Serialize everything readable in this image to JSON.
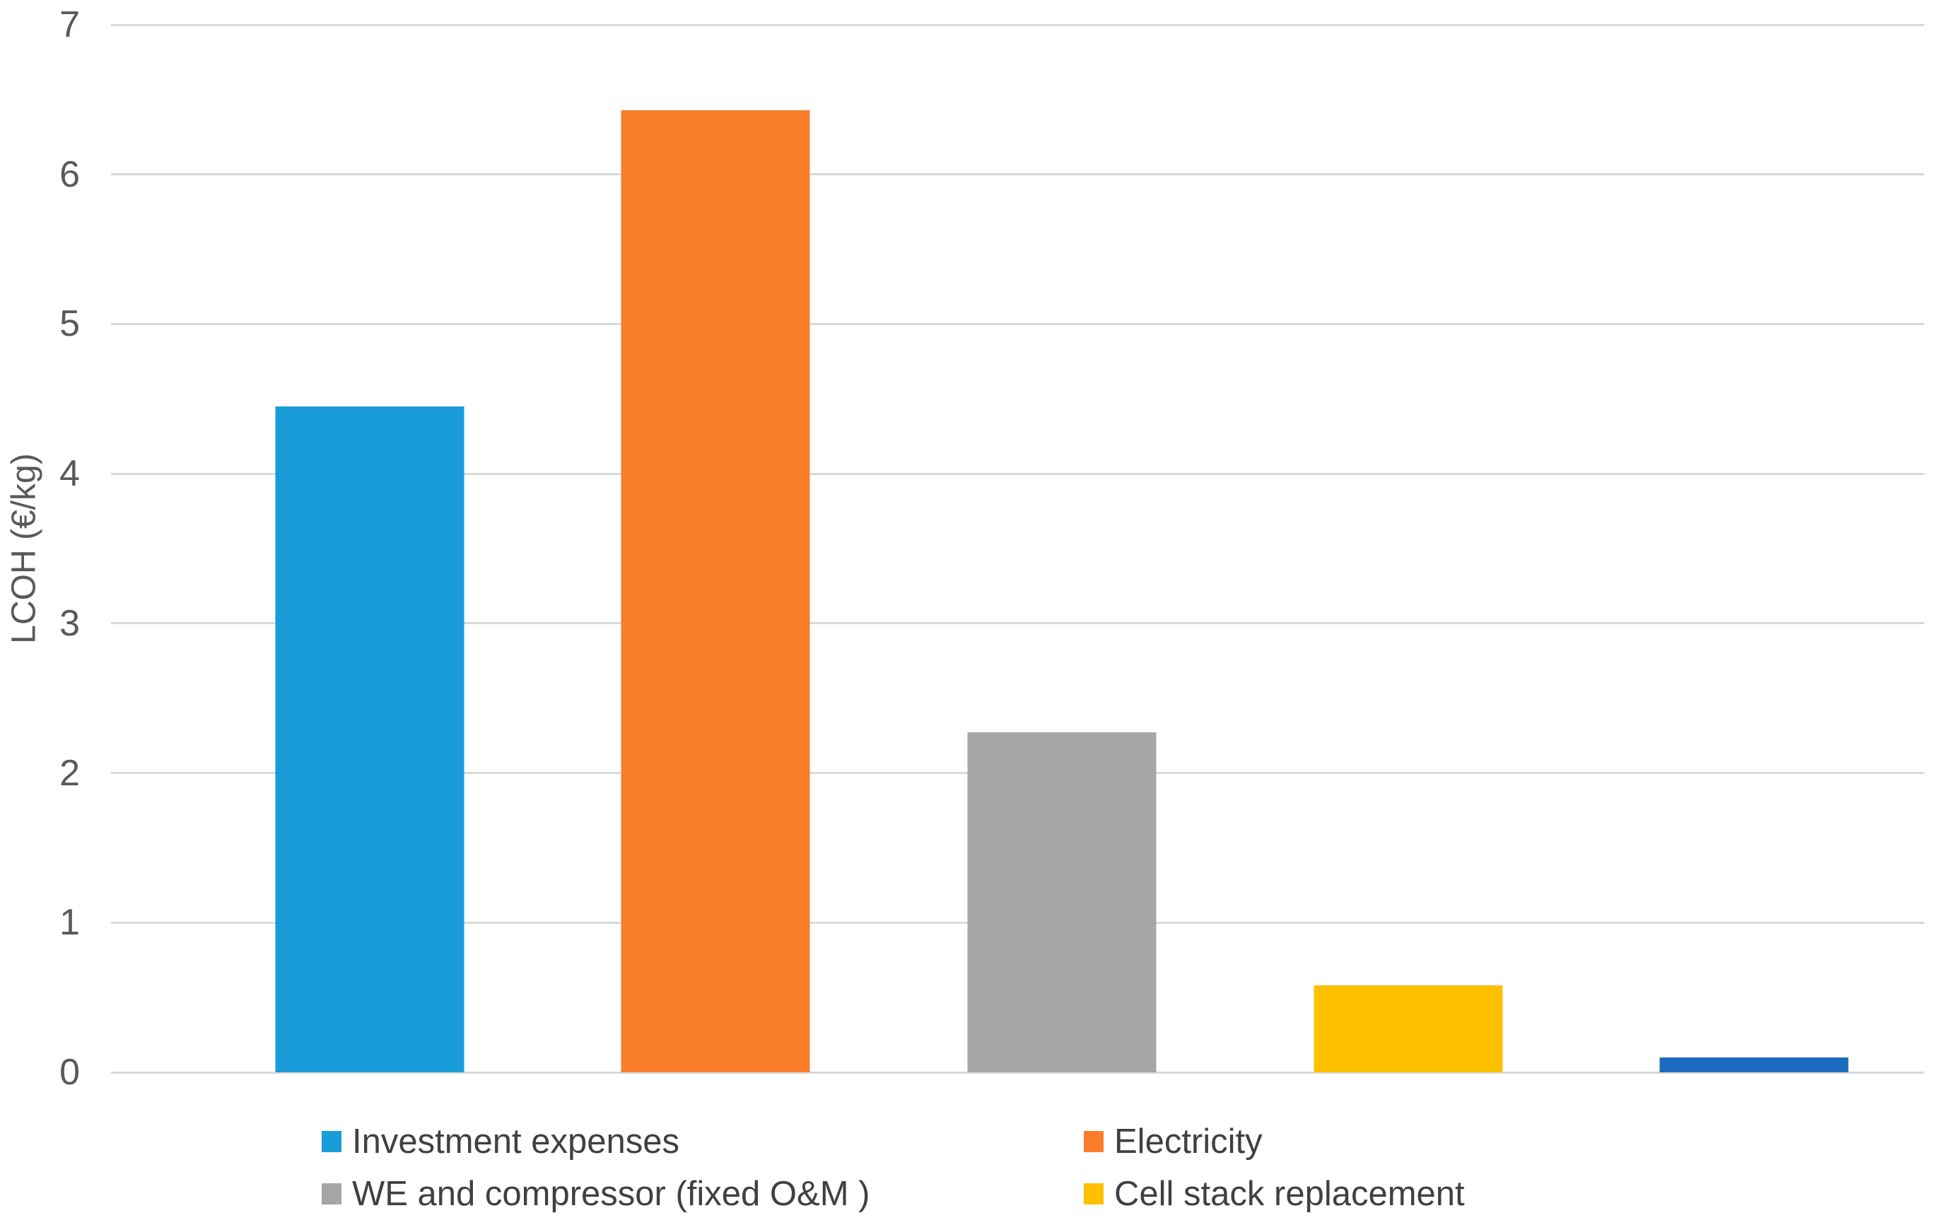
{
  "chart_data": {
    "type": "bar",
    "title": "",
    "xlabel": "",
    "ylabel": "LCOH (€/kg)",
    "ylim": [
      0,
      7
    ],
    "yticks": [
      0,
      1,
      2,
      3,
      4,
      5,
      6,
      7
    ],
    "grid": true,
    "legend_position": "bottom-two-columns",
    "series": [
      {
        "name": "Investment expenses",
        "value": 4.45,
        "color": "#199CD8",
        "in_legend": true
      },
      {
        "name": "Electricity",
        "value": 6.43,
        "color": "#FA7D29",
        "in_legend": true
      },
      {
        "name": "WE and compressor (fixed O&M )",
        "value": 2.27,
        "color": "#A6A6A6",
        "in_legend": true
      },
      {
        "name": "Cell stack replacement",
        "value": 0.58,
        "color": "#FFC000",
        "in_legend": true
      },
      {
        "name": "",
        "value": 0.1,
        "color": "#1B6CBF",
        "in_legend": false
      }
    ],
    "colors": {
      "gridline": "#D9D9D9",
      "tick_label": "#595959",
      "axis_title": "#595959",
      "legend_text": "#404040",
      "background": "#FFFFFF"
    }
  }
}
